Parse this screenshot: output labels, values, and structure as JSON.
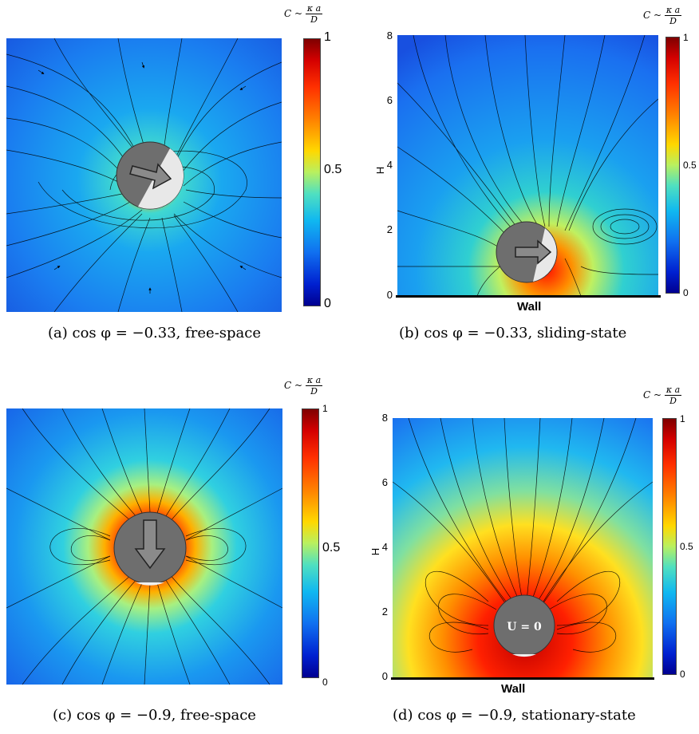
{
  "colorbar": {
    "title_prefix": "C ~",
    "title_num": "κ a",
    "title_den": "D",
    "max_label": "1",
    "mid_label": "0.5",
    "min_label": "0"
  },
  "panels": {
    "a": {
      "tag": "(a)",
      "math": "cos φ = −0.33,",
      "desc": "free-space"
    },
    "b": {
      "tag": "(b)",
      "math": "cos φ = −0.33,",
      "desc": "sliding-state",
      "y_label": "H",
      "y_ticks": [
        "8",
        "6",
        "4",
        "2",
        "0"
      ],
      "wall": "Wall"
    },
    "c": {
      "tag": "(c)",
      "math": "cos φ = −0.9,",
      "desc": "free-space"
    },
    "d": {
      "tag": "(d)",
      "math": "cos φ = −0.9,",
      "desc": "stationary-state",
      "y_label": "H",
      "y_ticks": [
        "8",
        "6",
        "4",
        "2",
        "0"
      ],
      "wall": "Wall",
      "particle_label": "U = 0"
    }
  }
}
